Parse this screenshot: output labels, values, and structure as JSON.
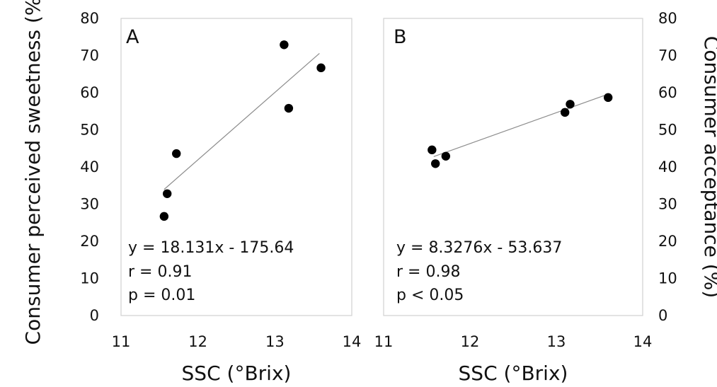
{
  "chart_data": [
    {
      "type": "scatter",
      "panel_label": "A",
      "xlabel": "SSC (°Brix)",
      "ylabel": "Consumer perceived sweetness  (%)",
      "xlim": [
        11,
        14
      ],
      "ylim": [
        0,
        80
      ],
      "x_ticks": [
        "11",
        "12",
        "13",
        "14"
      ],
      "y_ticks": [
        "0",
        "10",
        "20",
        "30",
        "40",
        "50",
        "60",
        "70",
        "80"
      ],
      "y_axis_side": "left",
      "grid": false,
      "series": [
        {
          "x": [
            11.56,
            11.6,
            11.72,
            13.12,
            13.18,
            13.6
          ],
          "y": [
            26.7,
            32.8,
            43.6,
            72.9,
            55.8,
            66.7
          ]
        }
      ],
      "trendline": {
        "slope": 18.131,
        "intercept": -175.64,
        "x_range": [
          11.56,
          13.58
        ]
      },
      "annotations": [
        "y = 18.131x - 175.64",
        "r = 0.91",
        "p = 0.01"
      ]
    },
    {
      "type": "scatter",
      "panel_label": "B",
      "xlabel": "SSC (°Brix)",
      "ylabel": "Consumer acceptance  (%)",
      "xlim": [
        11,
        14
      ],
      "ylim": [
        0,
        80
      ],
      "x_ticks": [
        "11",
        "12",
        "13",
        "14"
      ],
      "y_ticks": [
        "0",
        "10",
        "20",
        "30",
        "40",
        "50",
        "60",
        "70",
        "80"
      ],
      "y_axis_side": "right",
      "grid": false,
      "series": [
        {
          "x": [
            11.56,
            11.6,
            11.72,
            13.1,
            13.16,
            13.6
          ],
          "y": [
            44.6,
            40.9,
            42.9,
            54.7,
            56.9,
            58.7
          ]
        }
      ],
      "trendline": {
        "slope": 8.3276,
        "intercept": -53.637,
        "x_range": [
          11.58,
          13.58
        ]
      },
      "annotations": [
        "y = 8.3276x - 53.637",
        "r = 0.98",
        "p < 0.05"
      ]
    }
  ]
}
